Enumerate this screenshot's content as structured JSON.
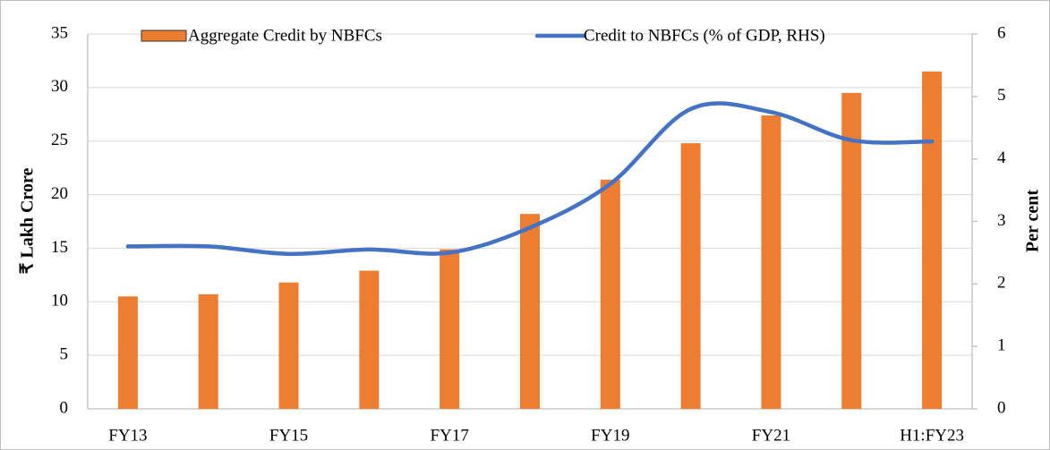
{
  "chart_data": {
    "type": "bar_line",
    "categories": [
      "FY13",
      null,
      "FY15",
      null,
      "FY17",
      null,
      "FY19",
      null,
      "FY21",
      null,
      "H1:FY23"
    ],
    "series": [
      {
        "name": "Aggregate Credit by NBFCs",
        "type": "bar",
        "color": "#ed7d31",
        "values": [
          10.5,
          10.7,
          11.8,
          12.9,
          14.9,
          18.2,
          21.4,
          24.8,
          27.4,
          29.5,
          31.5
        ]
      },
      {
        "name": "Credit to NBFCs (% of GDP, RHS)",
        "type": "line",
        "axis": "y2",
        "color": "#4472c4",
        "values": [
          2.6,
          2.6,
          2.48,
          2.55,
          2.5,
          2.9,
          3.6,
          4.8,
          4.75,
          4.3,
          4.28
        ]
      }
    ],
    "ylabel": "₹ Lakh Crore",
    "y2label": "Per cent",
    "ylim": [
      0,
      35
    ],
    "yticks": [
      0,
      5,
      10,
      15,
      20,
      25,
      30,
      35
    ],
    "y2lim": [
      0,
      6
    ],
    "y2ticks": [
      0,
      1,
      2,
      3,
      4,
      5,
      6
    ],
    "grid": true,
    "legend": "top"
  }
}
